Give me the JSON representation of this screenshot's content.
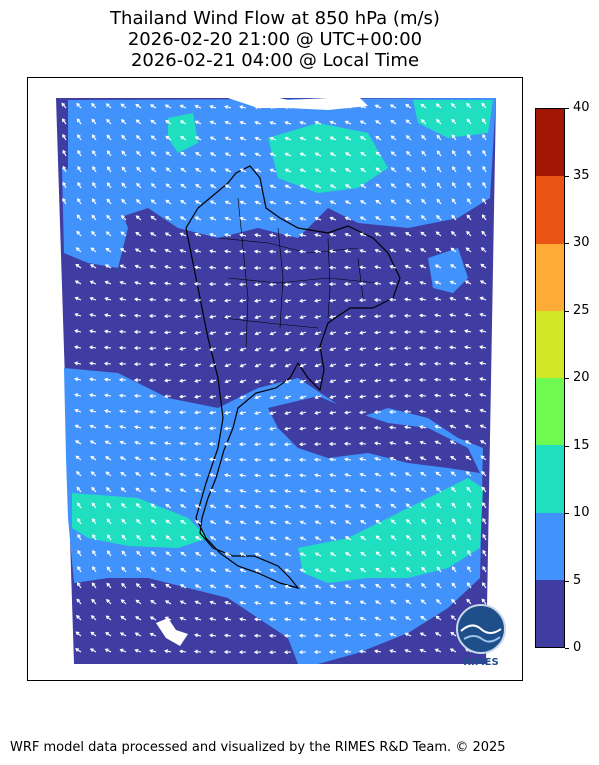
{
  "title": {
    "line1": "Thailand Wind Flow at 850 hPa (m/s)",
    "line2": "2026-02-20 21:00 @ UTC+00:00",
    "line3": "2026-02-21 04:00 @ Local Time"
  },
  "colorbar": {
    "ticks": [
      "40",
      "35",
      "30",
      "25",
      "20",
      "15",
      "10",
      "5",
      "0"
    ],
    "segments": [
      {
        "range": "35-40",
        "color": "#a21704"
      },
      {
        "range": "30-35",
        "color": "#ea5414"
      },
      {
        "range": "25-30",
        "color": "#ffab35"
      },
      {
        "range": "20-25",
        "color": "#d3e729"
      },
      {
        "range": "15-20",
        "color": "#6ffa52"
      },
      {
        "range": "10-15",
        "color": "#1fdfc0"
      },
      {
        "range": "5-10",
        "color": "#4292fb"
      },
      {
        "range": "0-5",
        "color": "#3f3da2"
      }
    ]
  },
  "map": {
    "region": "Thailand",
    "dominant_speed_class": "0-5",
    "flow_direction": "northeasterly",
    "water_color": "#3f3da2",
    "moderate_color": "#4292fb",
    "strong_color": "#1fdfc0"
  },
  "logo": {
    "text": "RIMES"
  },
  "footer": "WRF model data processed and visualized by the RIMES R&D Team. © 2025"
}
